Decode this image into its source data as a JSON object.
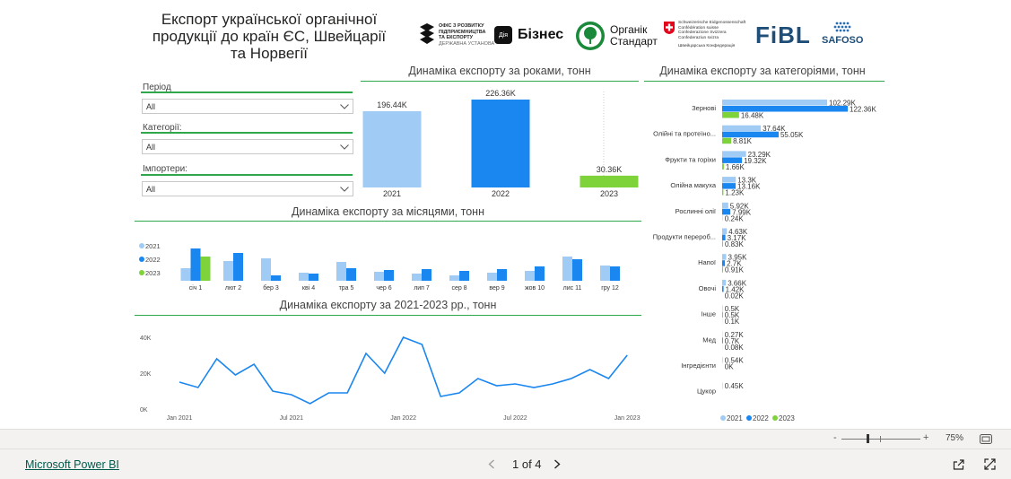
{
  "header": {
    "title_lines": [
      "Експорт української органічної",
      "продукції до країн ЄС, Швейцарії",
      "та Норвегії"
    ],
    "logos": {
      "office": [
        "ОФІС З РОЗВИТКУ",
        "ПІДПРИЄМНИЦТВА",
        "ТА ЕКСПОРТУ",
        "ДЕРЖАВНА УСТАНОВА"
      ],
      "diia_mark": "Дія",
      "diia_text": "Бізнес",
      "organic_line1": "Органік",
      "organic_line2": "Стандарт",
      "swiss": [
        "Schweizerische Eidgenossenschaft",
        "Confédération suisse",
        "Confederazione Svizzera",
        "Confederaziun svizra"
      ],
      "swiss_sub": "Швейцарська Конфедерація",
      "fibl": "FiBL",
      "safoso": "SAFOSO"
    }
  },
  "slicers": [
    {
      "label": "Період",
      "value": "All"
    },
    {
      "label": "Категорії:",
      "value": "All"
    },
    {
      "label": "Імпортери:",
      "value": "All"
    }
  ],
  "colors": {
    "y2021": "#9fcbf4",
    "y2022": "#1a86ef",
    "y2023": "#7ed23a",
    "accent_line": "#2ea84a",
    "line_series": "#1a86ef"
  },
  "sections": {
    "yearly_title": "Динаміка експорту за роками, тонн",
    "category_title": "Динаміка експорту за категоріями, тонн",
    "monthly_title": "Динаміка експорту за місяцями, тонн",
    "trend_title": "Динаміка експорту за 2021-2023 рр., тонн"
  },
  "chart_data": [
    {
      "type": "bar",
      "title": "Динаміка експорту за роками, тонн",
      "categories": [
        "2021",
        "2022",
        "2023"
      ],
      "values": [
        196.44,
        226.36,
        30.36
      ],
      "data_labels": [
        "196.44K",
        "226.36K",
        "30.36K"
      ],
      "unit": "thousand tonnes",
      "ylim": [
        0,
        226.36
      ]
    },
    {
      "type": "bar",
      "orientation": "horizontal",
      "title": "Динаміка експорту за категоріями, тонн",
      "categories": [
        "Зернові",
        "Олійні та протеїно...",
        "Фрукти та горіхи",
        "Олійна макуха",
        "Рослинні олії",
        "Продукти перероб...",
        "Напої",
        "Овочі",
        "Інше",
        "Мед",
        "Інгредієнти",
        "Цукор"
      ],
      "series": [
        {
          "name": "2021",
          "values": [
            102.29,
            37.64,
            23.29,
            13.3,
            5.92,
            4.63,
            3.95,
            3.66,
            0.5,
            0.27,
            0.54,
            0.45
          ],
          "labels": [
            "102.29K",
            "37.64K",
            "23.29K",
            "13.3K",
            "5.92K",
            "4.63K",
            "3.95K",
            "3.66K",
            "0.5K",
            "0.27K",
            "0.54K",
            "0.45K"
          ]
        },
        {
          "name": "2022",
          "values": [
            122.36,
            55.05,
            19.32,
            13.16,
            7.99,
            3.17,
            2.7,
            1.42,
            0.5,
            0.7,
            0,
            0
          ],
          "labels": [
            "122.36K",
            "55.05K",
            "19.32K",
            "13.16K",
            "7.99K",
            "3.17K",
            "2.7K",
            "1.42K",
            "0.5K",
            "0.7K",
            "0K",
            ""
          ]
        },
        {
          "name": "2023",
          "values": [
            16.48,
            8.81,
            1.66,
            1.23,
            0.24,
            0.83,
            0.91,
            0.02,
            0.1,
            0.08,
            0,
            0
          ],
          "labels": [
            "16.48K",
            "8.81K",
            "1.66K",
            "1.23K",
            "0.24K",
            "0.83K",
            "0.91K",
            "0.02K",
            "0.1K",
            "0.08K",
            "",
            ""
          ]
        }
      ],
      "legend": [
        "2021",
        "2022",
        "2023"
      ],
      "xlim": [
        0,
        122.36
      ]
    },
    {
      "type": "bar",
      "title": "Динаміка експорту за місяцями, тонн",
      "categories": [
        "січ 1",
        "лют 2",
        "бер 3",
        "кві 4",
        "тра 5",
        "чер 6",
        "лип 7",
        "сер 8",
        "вер 9",
        "жов 10",
        "лис 11",
        "гру 12"
      ],
      "series": [
        {
          "name": "2021",
          "values": [
            14,
            22,
            25,
            9,
            21,
            10,
            8,
            6,
            9,
            11,
            27,
            17
          ]
        },
        {
          "name": "2022",
          "values": [
            36,
            31,
            6,
            8,
            14,
            12,
            13,
            11,
            13,
            16,
            24,
            16
          ]
        },
        {
          "name": "2023",
          "values": [
            27,
            0,
            0,
            0,
            0,
            0,
            0,
            0,
            0,
            0,
            0,
            0
          ]
        }
      ],
      "legend": [
        "2021",
        "2022",
        "2023"
      ],
      "ylim": [
        0,
        40
      ]
    },
    {
      "type": "line",
      "title": "Динаміка експорту за 2021-2023 рр., тонн",
      "x_ticks": [
        "Jan 2021",
        "Jul 2021",
        "Jan 2022",
        "Jul 2022",
        "Jan 2023"
      ],
      "y_ticks": [
        "0K",
        "20K",
        "40K"
      ],
      "ylim": [
        0,
        45
      ],
      "values": [
        15,
        12,
        28,
        19,
        25,
        10,
        8,
        3,
        9,
        9,
        31,
        20,
        40,
        36,
        7,
        9,
        17,
        13,
        14,
        12,
        14,
        17,
        22,
        17,
        30
      ]
    }
  ],
  "footer": {
    "zoom_minus": "-",
    "zoom_plus": "+",
    "zoom_value": "75%",
    "brand_link": "Microsoft Power BI",
    "page_indicator": "1 of 4"
  }
}
